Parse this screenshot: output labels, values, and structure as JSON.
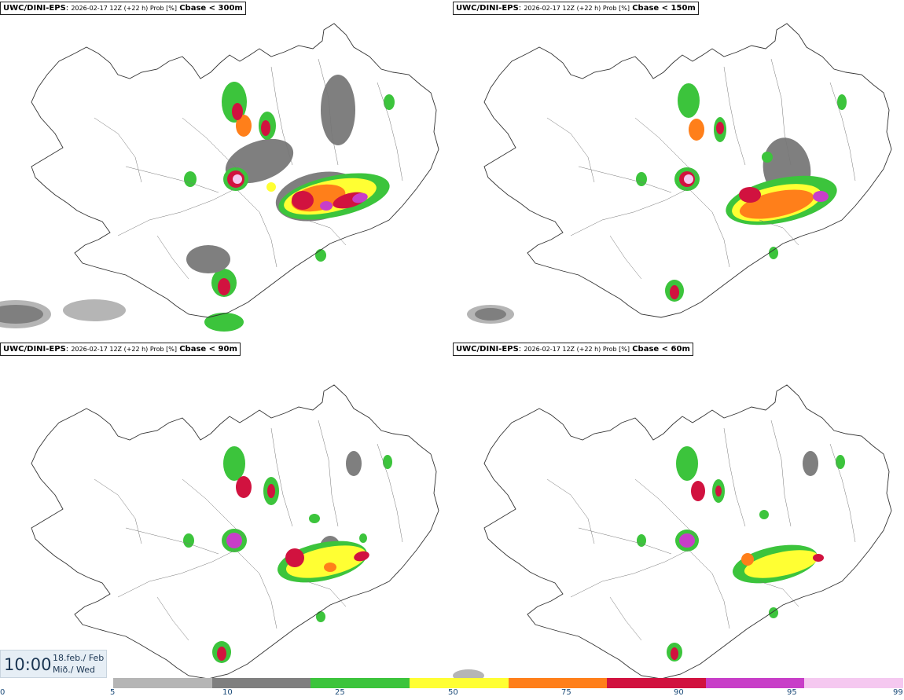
{
  "panels": [
    {
      "model": "UWC/DINI-EPS",
      "meta": "2026-02-17 12Z (+22 h) Prob [%]",
      "cbase": "Cbase < 300m"
    },
    {
      "model": "UWC/DINI-EPS",
      "meta": "2026-02-17 12Z (+22 h) Prob [%]",
      "cbase": "Cbase < 150m"
    },
    {
      "model": "UWC/DINI-EPS",
      "meta": "2026-02-17 12Z (+22 h) Prob [%]",
      "cbase": "Cbase < 90m"
    },
    {
      "model": "UWC/DINI-EPS",
      "meta": "2026-02-17 12Z (+22 h) Prob [%]",
      "cbase": "Cbase < 60m"
    }
  ],
  "valid_time": {
    "time": "10:00",
    "date_line1": "18.feb./ Feb",
    "date_line2": "Mið./ Wed"
  },
  "legend": {
    "ticks": [
      "0",
      "5",
      "10",
      "25",
      "50",
      "75",
      "90",
      "95",
      "99"
    ],
    "colors": [
      "#b5b5b5",
      "#7f7f7f",
      "#3cc43c",
      "#ffff33",
      "#ff7f1a",
      "#d1123f",
      "#c83ec8",
      "#f5c8f0"
    ]
  }
}
